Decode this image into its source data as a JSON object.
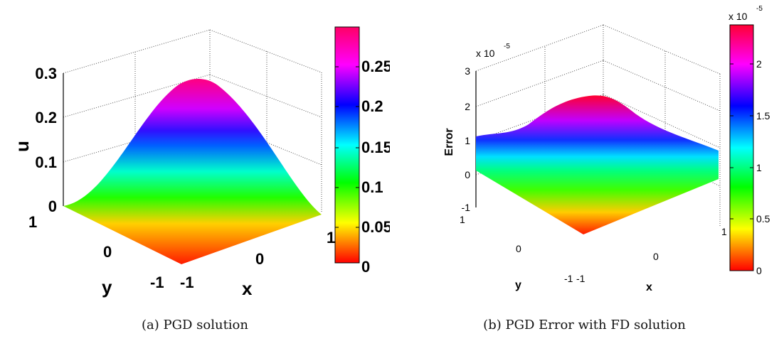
{
  "chart_data": [
    {
      "type": "surface",
      "caption": "(a)  PGD solution",
      "zlabel": "u",
      "xlabel": "x",
      "ylabel": "y",
      "xlim": [
        -1,
        1
      ],
      "ylim": [
        -1,
        1
      ],
      "zlim": [
        0,
        0.3
      ],
      "x_ticks": [
        "-1",
        "0",
        "1"
      ],
      "y_ticks": [
        "-1",
        "0",
        "1"
      ],
      "z_ticks": [
        "0",
        "0.1",
        "0.2",
        "0.3"
      ],
      "colorbar": {
        "range": [
          0,
          0.29
        ],
        "ticks": [
          "0",
          "0.05",
          "0.1",
          "0.15",
          "0.2",
          "0.25"
        ]
      },
      "peak_value": 0.29,
      "colormap": [
        "#ff0000",
        "#ffff00",
        "#00ff00",
        "#00ffff",
        "#0000ff",
        "#ff00ff",
        "#ff0080"
      ],
      "grid": true
    },
    {
      "type": "surface",
      "caption": "(b)  PGD Error with FD solution",
      "zlabel": "Error",
      "xlabel": "x",
      "ylabel": "y",
      "xlim": [
        -1,
        1
      ],
      "ylim": [
        -1,
        1
      ],
      "zlim": [
        -1,
        3
      ],
      "z_exponent": "x 10",
      "z_exponent_power": "-5",
      "x_ticks": [
        "-1",
        "0",
        "1"
      ],
      "y_ticks": [
        "-1",
        "0",
        "1"
      ],
      "z_ticks": [
        "-1",
        "0",
        "1",
        "2",
        "3"
      ],
      "colorbar": {
        "range": [
          0,
          2.35
        ],
        "ticks": [
          "0",
          "0.5",
          "1",
          "1.5",
          "2"
        ],
        "exponent": "x 10",
        "exponent_power": "-5"
      },
      "peak_value": 2.3,
      "colormap": [
        "#ff0000",
        "#ffff00",
        "#00ff00",
        "#00ffff",
        "#0000ff",
        "#ff00ff",
        "#ff0080"
      ],
      "grid": true
    }
  ]
}
